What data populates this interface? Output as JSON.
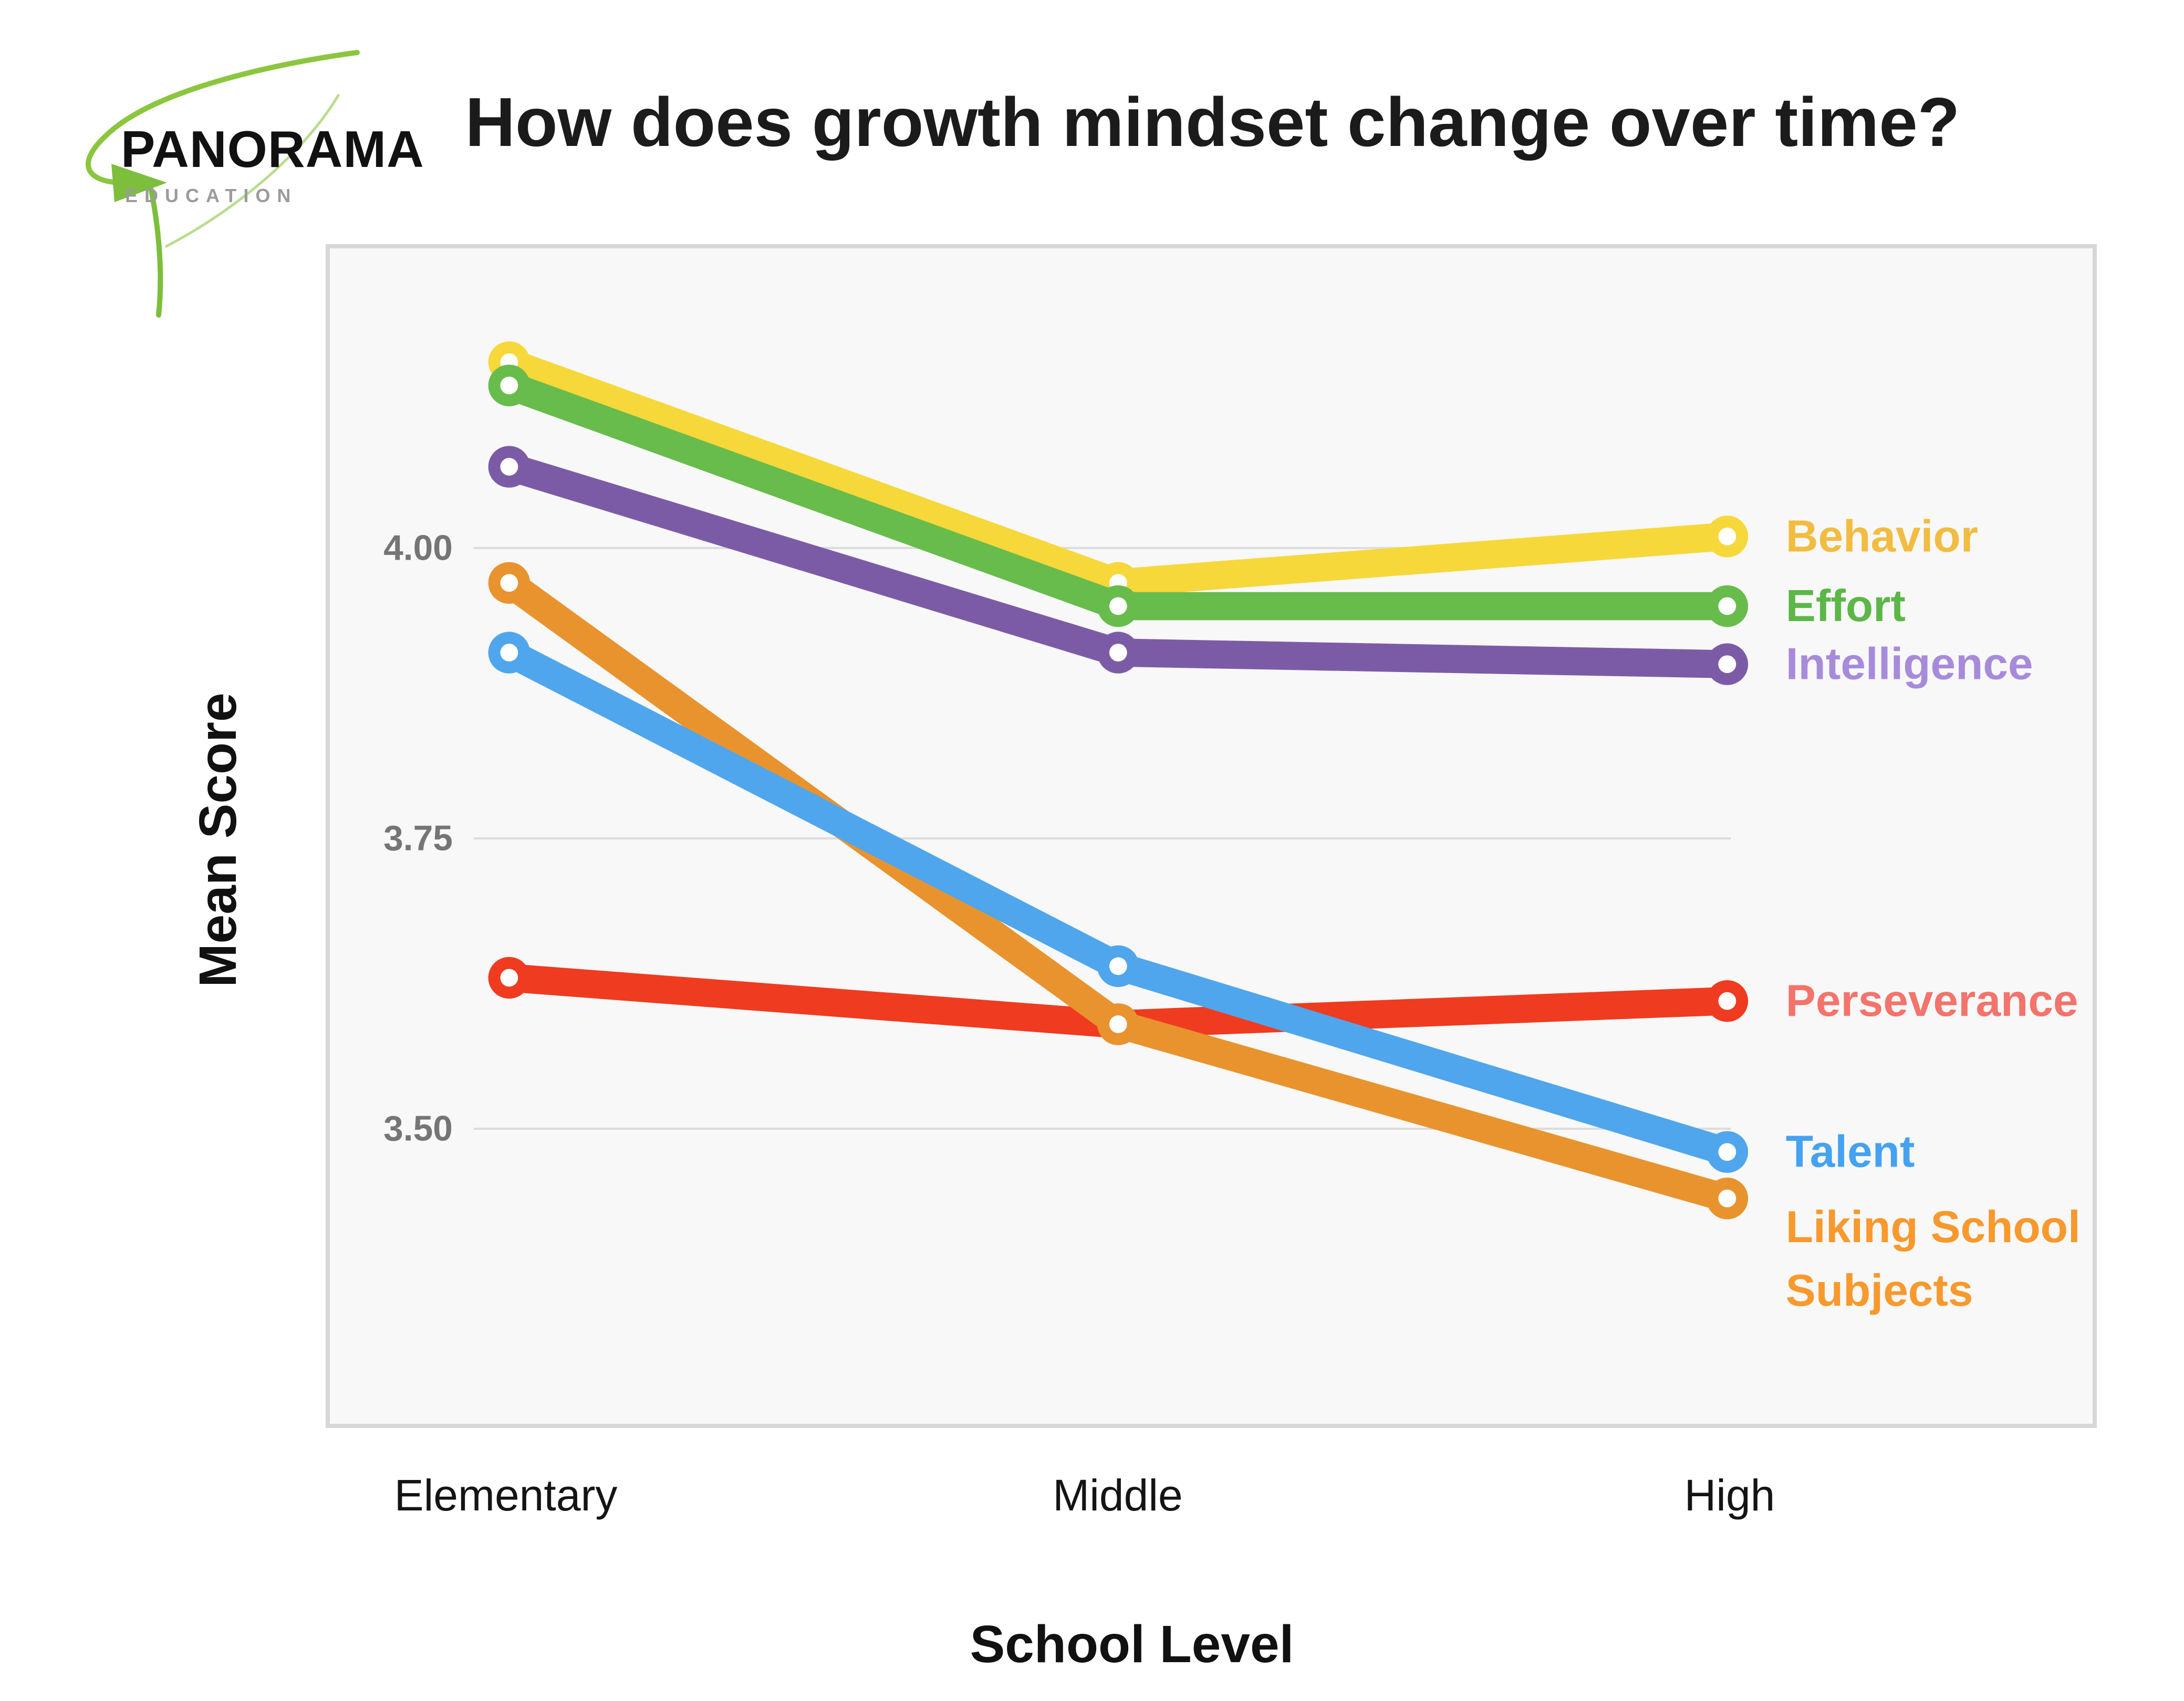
{
  "logo": {
    "brand": "PANORAMA",
    "sub": "EDUCATION",
    "swoosh_color": "#8CC63F"
  },
  "chart_data": {
    "type": "line",
    "title": "How does growth mindset change over time?",
    "xlabel": "School Level",
    "ylabel": "Mean Score",
    "categories": [
      "Elementary",
      "Middle",
      "High"
    ],
    "yticks": [
      {
        "label": "4.00",
        "value": 4.0
      },
      {
        "label": "3.75",
        "value": 3.75
      },
      {
        "label": "3.50",
        "value": 3.5
      }
    ],
    "ylim": [
      3.28,
      4.26
    ],
    "grid": true,
    "legend_position": "right-of-line-endpoints",
    "panel_background": "#f8f8f8",
    "gridline_color": "#dcdcdc",
    "tick_label_color": "#757575",
    "series": [
      {
        "name": "Behavior",
        "label_lines": [
          "Behavior"
        ],
        "values": [
          4.16,
          3.97,
          4.01
        ],
        "line_color": "#F6D83B",
        "label_color": "#F2BC40"
      },
      {
        "name": "Effort",
        "label_lines": [
          "Effort"
        ],
        "values": [
          4.14,
          3.95,
          3.95
        ],
        "line_color": "#68BC4B",
        "label_color": "#5CB748"
      },
      {
        "name": "Intelligence",
        "label_lines": [
          "Intelligence"
        ],
        "values": [
          4.07,
          3.91,
          3.9
        ],
        "line_color": "#7C5BA6",
        "label_color": "#A78BDB"
      },
      {
        "name": "Perseverance",
        "label_lines": [
          "Perseverance"
        ],
        "values": [
          3.63,
          3.59,
          3.61
        ],
        "line_color": "#EF3B20",
        "label_color": "#F4736B"
      },
      {
        "name": "Talent",
        "label_lines": [
          "Talent"
        ],
        "values": [
          3.91,
          3.64,
          3.48
        ],
        "line_color": "#4FA6EC",
        "label_color": "#45A2F0"
      },
      {
        "name": "Liking School Subjects",
        "label_lines": [
          "Liking School",
          "Subjects"
        ],
        "values": [
          3.97,
          3.59,
          3.44
        ],
        "line_color": "#E9932E",
        "label_color": "#F8992D"
      }
    ]
  }
}
